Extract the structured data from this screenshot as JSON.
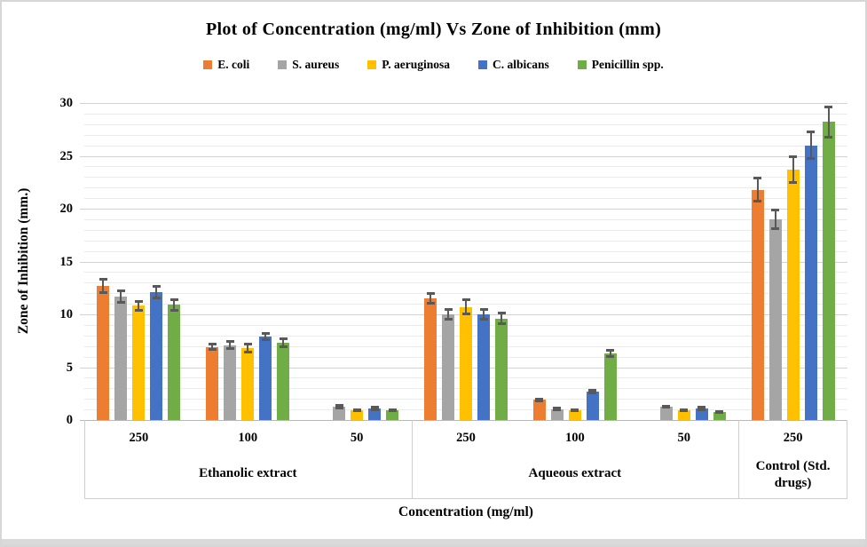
{
  "frame": {
    "background": "#ffffff",
    "border_color": "#d6d6d6",
    "bottom_strip_color": "#d9d9d9"
  },
  "chart_data": {
    "type": "bar",
    "title": "Plot of Concentration (mg/ml) Vs Zone of Inhibition (mm)",
    "xlabel": "Concentration (mg/ml)",
    "ylabel": "Zone of Inhibition (mm.)",
    "ylim": [
      0,
      30
    ],
    "y_ticks": [
      0,
      5,
      10,
      15,
      20,
      25,
      30
    ],
    "minor_grid_step": 1,
    "major_grid_step": 5,
    "grid": true,
    "legend_position": "top",
    "error_bars": true,
    "categories": [
      "250",
      "100",
      "50",
      "250",
      "100",
      "50",
      "250"
    ],
    "group_sections": [
      {
        "label": "Ethanolic extract",
        "categories": [
          "250",
          "100",
          "50"
        ]
      },
      {
        "label": "Aqueous extract",
        "categories": [
          "250",
          "100",
          "50"
        ]
      },
      {
        "label": "Control (Std. drugs)",
        "categories": [
          "250"
        ]
      }
    ],
    "series": [
      {
        "name": "E. coli",
        "color": "#ED7D31",
        "values": [
          12.7,
          6.9,
          0,
          11.5,
          1.9,
          0,
          21.8
        ],
        "errors": [
          0.7,
          0.3,
          0,
          0.5,
          0.15,
          0,
          1.1
        ]
      },
      {
        "name": "S. aureus",
        "color": "#A5A5A5",
        "values": [
          11.7,
          7.1,
          1.25,
          10.0,
          1.05,
          1.25,
          19.0
        ],
        "errors": [
          0.6,
          0.4,
          0.15,
          0.5,
          0.1,
          0.1,
          0.95
        ]
      },
      {
        "name": "P. aeruginosa",
        "color": "#FFC000",
        "values": [
          10.8,
          6.8,
          0.9,
          10.7,
          0.9,
          0.9,
          23.7
        ],
        "errors": [
          0.5,
          0.4,
          0.1,
          0.7,
          0.1,
          0.1,
          1.3
        ]
      },
      {
        "name": "C. albicans",
        "color": "#4472C4",
        "values": [
          12.1,
          7.9,
          1.1,
          10.0,
          2.7,
          1.1,
          26.0
        ],
        "errors": [
          0.6,
          0.35,
          0.15,
          0.5,
          0.15,
          0.15,
          1.3
        ]
      },
      {
        "name": "Penicillin spp.",
        "color": "#70AD47",
        "values": [
          10.9,
          7.3,
          0.9,
          9.6,
          6.3,
          0.75,
          28.2
        ],
        "errors": [
          0.55,
          0.4,
          0.1,
          0.55,
          0.3,
          0.1,
          1.5
        ]
      }
    ],
    "error_bar_color": "#595959",
    "gridline_minor_color": "#ebebeb",
    "gridline_major_color": "#d2d2d2",
    "axis_line_color": "#b8b8b8",
    "category_box_color": "#cfcfcf"
  }
}
